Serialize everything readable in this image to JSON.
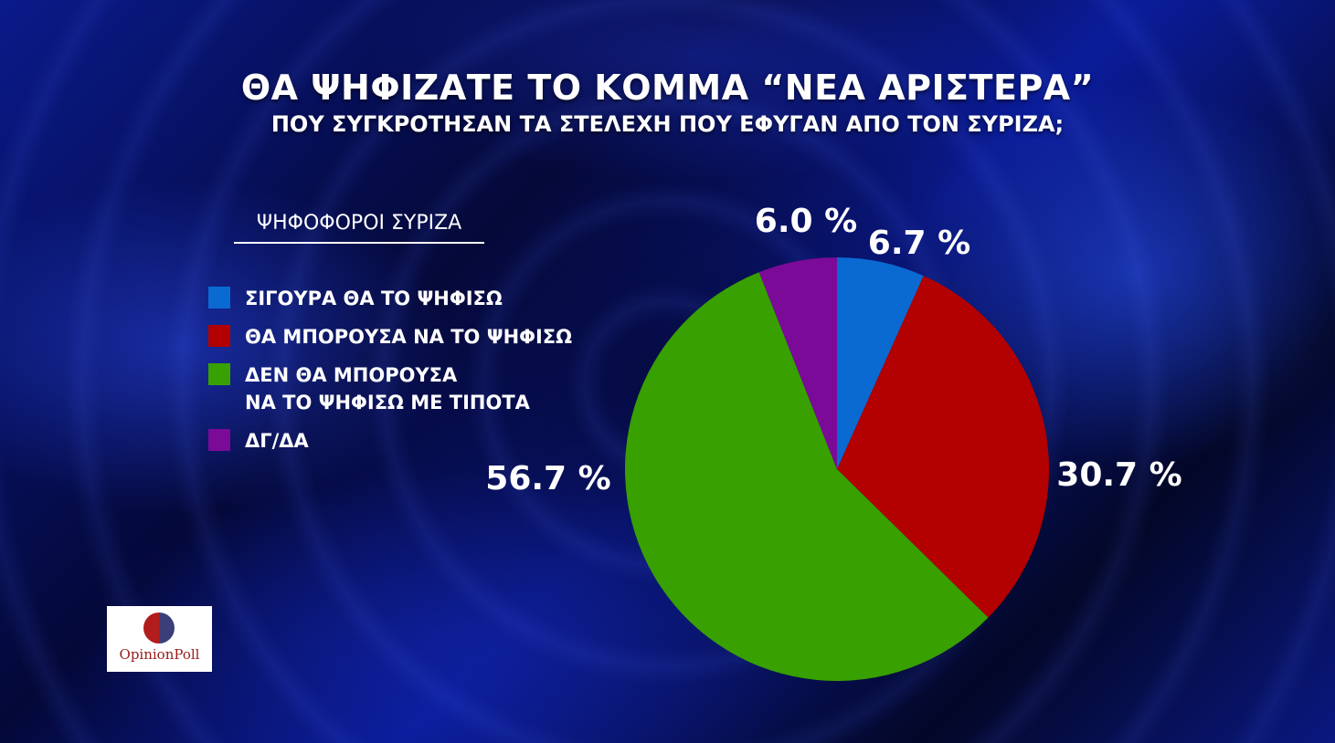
{
  "title": "ΘΑ ΨΗΦΙΖΑΤΕ ΤΟ ΚΟΜΜΑ “ΝΕΑ ΑΡΙΣΤΕΡΑ”",
  "subtitle": "ΠΟΥ ΣΥΓΚΡΟΤΗΣΑΝ ΤΑ ΣΤΕΛΕΧΗ ΠΟΥ ΕΦΥΓΑΝ ΑΠΟ ΤΟΝ ΣΥΡΙΖΑ;",
  "legend_heading": "ΨΗΦΟΦΟΡΟΙ ΣΥΡΙΖΑ",
  "logo": {
    "text": "OpinionPoll",
    "colors": [
      "#b11c1c",
      "#3a3f7a"
    ]
  },
  "chart_data": {
    "type": "pie",
    "title": "ΘΑ ΨΗΦΙΖΑΤΕ ΤΟ ΚΟΜΜΑ “ΝΕΑ ΑΡΙΣΤΕΡΑ”",
    "subtitle": "ΠΟΥ ΣΥΓΚΡΟΤΗΣΑΝ ΤΑ ΣΤΕΛΕΧΗ ΠΟΥ ΕΦΥΓΑΝ ΑΠΟ ΤΟΝ ΣΥΡΙΖΑ;",
    "legend_placement": "left",
    "slices": [
      {
        "label": "ΣΙΓΟΥΡΑ ΘΑ ΤΟ ΨΗΦΙΣΩ",
        "value": 6.7,
        "display": "6.7 %",
        "color": "#0a6ad2"
      },
      {
        "label": "ΘΑ ΜΠΟΡΟΥΣΑ ΝΑ ΤΟ ΨΗΦΙΣΩ",
        "value": 30.7,
        "display": "30.7 %",
        "color": "#b30000"
      },
      {
        "label": "ΔΕΝ ΘΑ ΜΠΟΡΟΥΣΑ\nΝΑ ΤΟ ΨΗΦΙΣΩ ΜΕ ΤΙΠΟΤΑ",
        "value": 56.7,
        "display": "56.7 %",
        "color": "#38a000"
      },
      {
        "label": "ΔΓ/ΔΑ",
        "value": 6.0,
        "display": "6.0 %",
        "color": "#7b0a99"
      }
    ]
  }
}
